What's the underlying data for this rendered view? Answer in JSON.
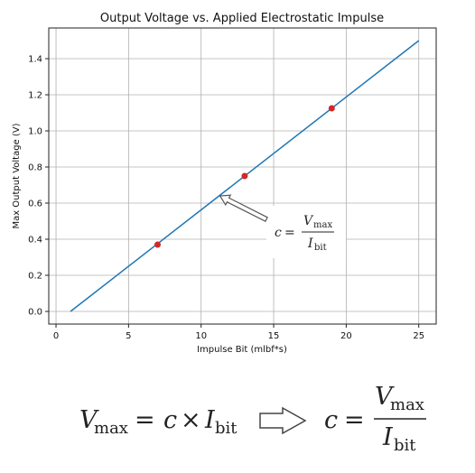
{
  "chart_data": {
    "type": "line",
    "title": "Output Voltage vs. Applied Electrostatic Impulse",
    "xlabel": "Impulse Bit (mlbf*s)",
    "ylabel": "Max Output Voltage (V)",
    "xlim": [
      -0.5,
      26.2
    ],
    "ylim": [
      -0.07,
      1.57
    ],
    "xticks": [
      0,
      5,
      10,
      15,
      20,
      25
    ],
    "xtick_labels": [
      "0",
      "5",
      "10",
      "15",
      "20",
      "25"
    ],
    "yticks": [
      0.0,
      0.2,
      0.4,
      0.6,
      0.8,
      1.0,
      1.2,
      1.4
    ],
    "ytick_labels": [
      "0.0",
      "0.2",
      "0.4",
      "0.6",
      "0.8",
      "1.0",
      "1.2",
      "1.4"
    ],
    "grid": true,
    "series": [
      {
        "type": "line",
        "color": "#1f77b4",
        "x": [
          1,
          25
        ],
        "y": [
          0.0,
          1.5
        ]
      },
      {
        "type": "scatter",
        "color": "#d62728",
        "x": [
          7,
          13,
          19
        ],
        "y": [
          0.37,
          0.75,
          1.125
        ]
      }
    ],
    "annotation": {
      "eq_lhs": "c",
      "eq_op": "=",
      "numerator": "V",
      "numerator_sub": "max",
      "denominator": "I",
      "denominator_sub": "bit",
      "arrow_from": [
        14.5,
        0.51
      ],
      "arrow_to": [
        11.3,
        0.64
      ]
    }
  },
  "bottom_equation": {
    "lhs_var": "V",
    "lhs_sub": "max",
    "equals": "=",
    "c": "c",
    "times": "×",
    "rhs_var": "I",
    "rhs_sub": "bit",
    "result_lhs": "c",
    "result_equals": "=",
    "result_num": "V",
    "result_num_sub": "max",
    "result_den": "I",
    "result_den_sub": "bit"
  }
}
